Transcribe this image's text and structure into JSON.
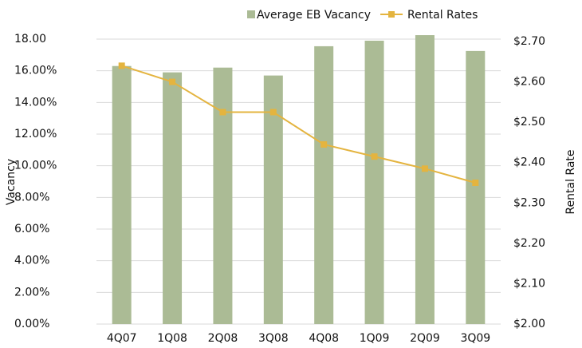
{
  "chart_data": {
    "type": "bar",
    "categories": [
      "4Q07",
      "1Q08",
      "2Q08",
      "3Q08",
      "4Q08",
      "1Q09",
      "2Q09",
      "3Q09"
    ],
    "series": [
      {
        "name": "Average EB Vacancy",
        "type": "bar",
        "color": "#abbb95",
        "values": [
          16.3,
          15.9,
          16.2,
          15.7,
          17.55,
          17.9,
          18.25,
          17.25
        ]
      },
      {
        "name": "Rental Rates",
        "type": "line",
        "axis": "y2",
        "color": "#e4b43f",
        "values": [
          2.64,
          2.6,
          2.525,
          2.525,
          2.445,
          2.415,
          2.385,
          2.35
        ]
      }
    ],
    "ylabel": "Vacancy",
    "y2label": "Rental Rate",
    "ylim": [
      0,
      18
    ],
    "yticks": [
      {
        "value": 0,
        "label": "0.00%"
      },
      {
        "value": 2,
        "label": "2.00%"
      },
      {
        "value": 4,
        "label": "4.00%"
      },
      {
        "value": 6,
        "label": "6.00%"
      },
      {
        "value": 8,
        "label": "8.00%"
      },
      {
        "value": 10,
        "label": "10.00%"
      },
      {
        "value": 12,
        "label": "12.00%"
      },
      {
        "value": 14,
        "label": "14.00%"
      },
      {
        "value": 16,
        "label": "16.00%"
      },
      {
        "value": 18,
        "label": "18.00"
      }
    ],
    "y2lim": [
      2,
      2.7
    ],
    "y2ticks": [
      {
        "value": 2,
        "label": "$2.00"
      },
      {
        "value": 2.1,
        "label": "$2.10"
      },
      {
        "value": 2.2,
        "label": "$2.20"
      },
      {
        "value": 2.3,
        "label": "$2.30"
      },
      {
        "value": 2.4,
        "label": "$2.40"
      },
      {
        "value": 2.5,
        "label": "$2.50"
      },
      {
        "value": 2.6,
        "label": "$2.60"
      },
      {
        "value": 2.7,
        "label": "$2.70"
      }
    ],
    "grid": true,
    "legend": "top"
  }
}
